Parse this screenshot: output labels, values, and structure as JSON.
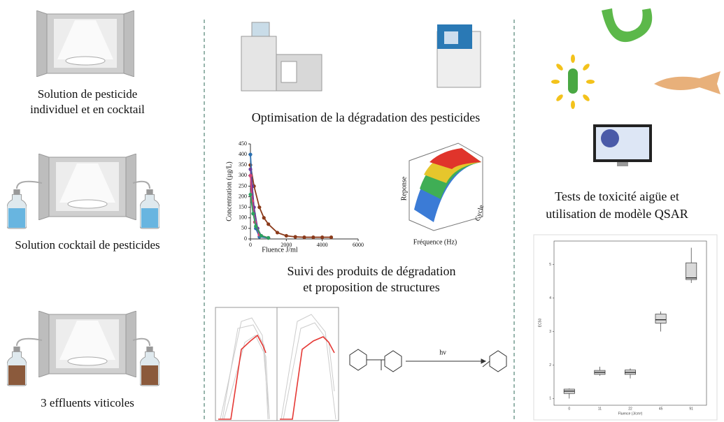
{
  "left": {
    "panels": [
      {
        "lines": [
          "Solution de pesticide",
          "individuel et en cocktail"
        ]
      },
      {
        "lines": [
          "Solution cocktail de pesticides"
        ]
      },
      {
        "lines": [
          "3 effluents viticoles"
        ]
      }
    ]
  },
  "middle": {
    "title": "Optimisation de la dégradation des pesticides",
    "concentration_chart": {
      "type": "line",
      "ylabel": "Concentration (µg/L)",
      "xlabel": "Fluence J/ml",
      "ylim": [
        0,
        450
      ],
      "yticks": [
        0,
        50,
        100,
        150,
        200,
        250,
        300,
        350,
        400,
        450
      ],
      "xlim": [
        0,
        6000
      ],
      "xticks": [
        0,
        2000,
        4000,
        6000
      ],
      "series": [
        {
          "color": "#8b3a1a",
          "x": [
            0,
            200,
            500,
            750,
            1000,
            1500,
            2000,
            2500,
            3000,
            3500,
            4000,
            4500
          ],
          "values": [
            350,
            250,
            150,
            100,
            70,
            30,
            15,
            10,
            8,
            8,
            8,
            8
          ]
        },
        {
          "color": "#2a6fb0",
          "x": [
            0,
            100,
            200,
            300,
            500,
            1000
          ],
          "values": [
            400,
            250,
            120,
            50,
            10,
            5
          ]
        },
        {
          "color": "#6a3d9a",
          "x": [
            0,
            100,
            200,
            400,
            600,
            1000
          ],
          "values": [
            330,
            250,
            150,
            50,
            15,
            5
          ]
        },
        {
          "color": "#d6457a",
          "x": [
            0,
            100,
            250,
            500,
            1000
          ],
          "values": [
            300,
            180,
            80,
            20,
            5
          ]
        },
        {
          "color": "#2ca25f",
          "x": [
            0,
            150,
            300,
            600,
            1000
          ],
          "values": [
            210,
            120,
            60,
            15,
            5
          ]
        }
      ]
    },
    "surface": {
      "zlabel": "Reponse",
      "xlabel": "Fréquence (Hz)",
      "ylabel": "Cycle"
    },
    "subtitle_lines": [
      "Suivi des produits de dégradation",
      "et proposition de structures"
    ],
    "reaction_label": "hν"
  },
  "right": {
    "title_lines": [
      "Tests de toxicité aigüe et",
      "utilisation de modèle QSAR"
    ],
    "boxplot": {
      "type": "box",
      "ylabel": "EC50",
      "xlabel": "Fluence (J/cm²)",
      "categories": [
        "0",
        "11",
        "22",
        "45",
        "91"
      ],
      "ylim": [
        0.8,
        5.7
      ],
      "yticks": [
        1,
        2,
        3,
        4,
        5
      ],
      "boxes": [
        {
          "min": 1.0,
          "q1": 1.15,
          "median": 1.22,
          "q3": 1.28,
          "max": 1.3
        },
        {
          "min": 1.68,
          "q1": 1.72,
          "median": 1.78,
          "q3": 1.84,
          "max": 1.95
        },
        {
          "min": 1.6,
          "q1": 1.72,
          "median": 1.78,
          "q3": 1.85,
          "max": 1.9
        },
        {
          "min": 3.0,
          "q1": 3.25,
          "median": 3.35,
          "q3": 3.52,
          "max": 3.6
        },
        {
          "min": 4.45,
          "q1": 4.55,
          "median": 4.6,
          "q3": 5.05,
          "max": 5.5
        }
      ]
    }
  }
}
